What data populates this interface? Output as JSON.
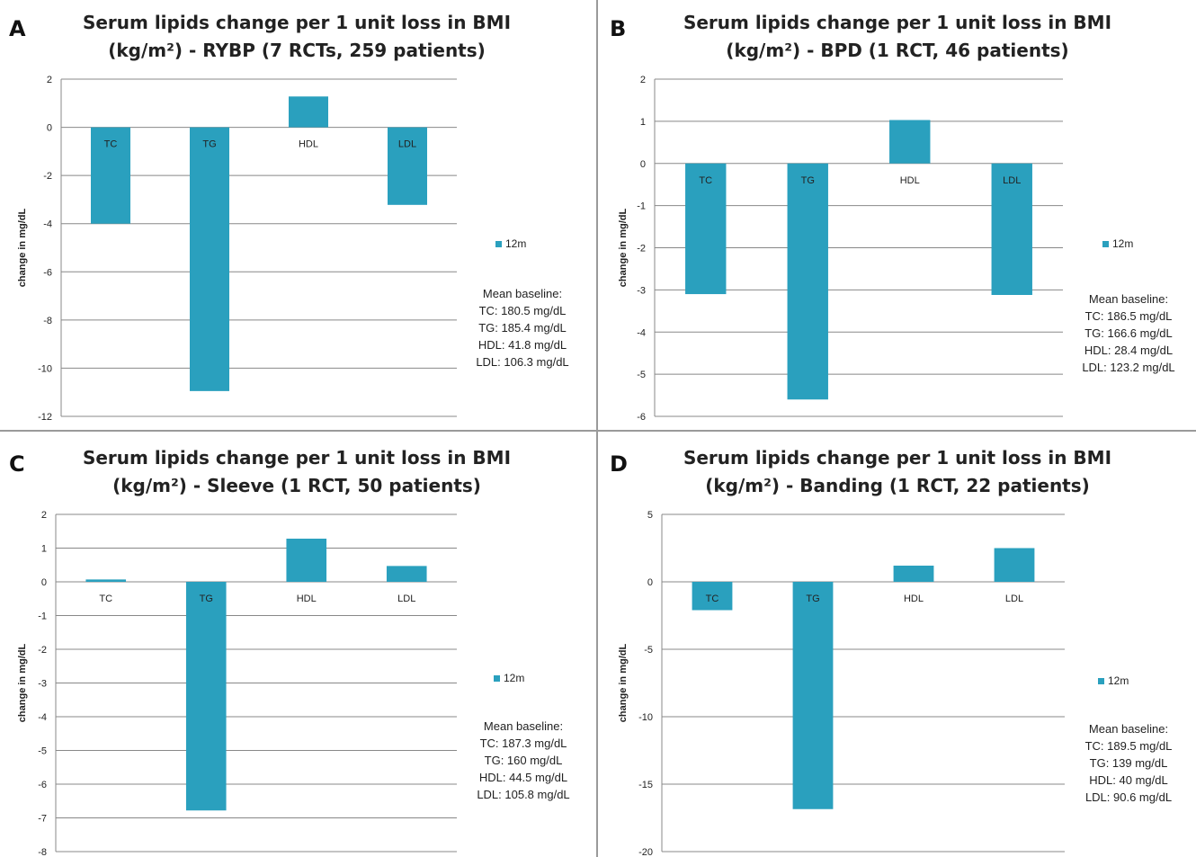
{
  "colors": {
    "bar": "#2aa0be",
    "grid": "#888888",
    "divider": "#9a9a9a"
  },
  "chart_data": [
    {
      "type": "bar",
      "panel": "A",
      "title_line1": "Serum lipids change per 1 unit loss in BMI",
      "title_line2": "(kg/m²) - RYBP (7 RCTs, 259 patients)",
      "ylabel": "change in mg/dL",
      "ylim": [
        -12,
        2
      ],
      "yticks": [
        2,
        0,
        -2,
        -4,
        -6,
        -8,
        -10,
        -12
      ],
      "categories": [
        "TC",
        "TG",
        "HDL",
        "LDL"
      ],
      "series": [
        {
          "name": "12m",
          "values": [
            -4.0,
            -10.95,
            1.28,
            -3.22
          ]
        }
      ],
      "legend_position": "right",
      "baseline_title": "Mean baseline:",
      "baseline": [
        "TC: 180.5 mg/dL",
        "TG: 185.4 mg/dL",
        "HDL: 41.8 mg/dL",
        "LDL: 106.3 mg/dL"
      ],
      "grid": true
    },
    {
      "type": "bar",
      "panel": "B",
      "title_line1": "Serum lipids change per 1 unit loss in BMI",
      "title_line2": "(kg/m²) - BPD (1 RCT, 46 patients)",
      "ylabel": "change in mg/dL",
      "ylim": [
        -6,
        2
      ],
      "yticks": [
        2,
        1,
        0,
        -1,
        -2,
        -3,
        -4,
        -5,
        -6
      ],
      "categories": [
        "TC",
        "TG",
        "HDL",
        "LDL"
      ],
      "series": [
        {
          "name": "12m",
          "values": [
            -3.1,
            -5.6,
            1.03,
            -3.12
          ]
        }
      ],
      "legend_position": "right",
      "baseline_title": "Mean baseline:",
      "baseline": [
        "TC: 186.5 mg/dL",
        "TG: 166.6 mg/dL",
        "HDL: 28.4 mg/dL",
        "LDL: 123.2 mg/dL"
      ],
      "grid": true
    },
    {
      "type": "bar",
      "panel": "C",
      "title_line1": "Serum lipids change per 1 unit loss in BMI",
      "title_line2": "(kg/m²) - Sleeve (1 RCT, 50 patients)",
      "ylabel": "change in mg/dL",
      "ylim": [
        -8,
        2
      ],
      "yticks": [
        2,
        1,
        0,
        -1,
        -2,
        -3,
        -4,
        -5,
        -6,
        -7,
        -8
      ],
      "categories": [
        "TC",
        "TG",
        "HDL",
        "LDL"
      ],
      "series": [
        {
          "name": "12m",
          "values": [
            0.07,
            -6.78,
            1.28,
            0.47
          ]
        }
      ],
      "legend_position": "right",
      "baseline_title": "Mean baseline:",
      "baseline": [
        "TC: 187.3 mg/dL",
        "TG: 160 mg/dL",
        "HDL: 44.5 mg/dL",
        "LDL: 105.8 mg/dL"
      ],
      "grid": true
    },
    {
      "type": "bar",
      "panel": "D",
      "title_line1": "Serum lipids change per 1 unit loss in BMI",
      "title_line2": "(kg/m²) - Banding (1 RCT, 22 patients)",
      "ylabel": "change in mg/dL",
      "ylim": [
        -20,
        5
      ],
      "yticks": [
        5,
        0,
        -5,
        -10,
        -15,
        -20
      ],
      "categories": [
        "TC",
        "TG",
        "HDL",
        "LDL"
      ],
      "series": [
        {
          "name": "12m",
          "values": [
            -2.1,
            -16.85,
            1.2,
            2.5
          ]
        }
      ],
      "legend_position": "right",
      "baseline_title": "Mean baseline:",
      "baseline": [
        "TC: 189.5 mg/dL",
        "TG: 139 mg/dL",
        "HDL: 40 mg/dL",
        "LDL: 90.6 mg/dL"
      ],
      "grid": true
    }
  ]
}
